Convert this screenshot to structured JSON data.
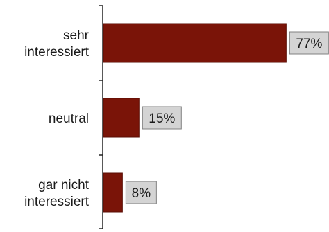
{
  "chart_data": {
    "type": "bar",
    "orientation": "horizontal",
    "title": "",
    "xlabel": "",
    "ylabel": "",
    "xlim": [
      0,
      100
    ],
    "grid": false,
    "legend": "none",
    "categories": [
      [
        "sehr",
        "interessiert"
      ],
      [
        "neutral"
      ],
      [
        "gar nicht",
        "interessiert"
      ]
    ],
    "values": [
      77,
      15,
      8
    ],
    "value_labels": [
      "77%",
      "15%",
      "8%"
    ],
    "colors": {
      "bar": "#7a1408",
      "bar_stroke": "#5a0e05",
      "label_box": "#d4d4d4",
      "label_box_stroke": "#808080",
      "axis": "#222222"
    }
  }
}
